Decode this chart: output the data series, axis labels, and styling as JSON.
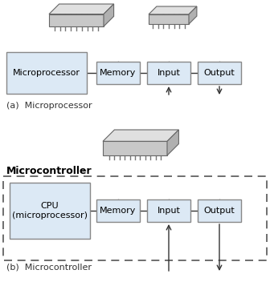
{
  "bg_color": "#ffffff",
  "box_fill": "#dce9f5",
  "box_edge": "#888888",
  "dashed_box_edge": "#555555",
  "section_a_label": "(a)  Microprocessor",
  "section_b_label": "(b)  Microcontroller",
  "microcontroller_title": "Microcontroller",
  "label_a": "Microprocessor",
  "label_b": "CPU\n(microprocessor)",
  "child_boxes": [
    "Memory",
    "Input",
    "Output"
  ],
  "fig_width": 3.36,
  "fig_height": 3.62,
  "line_color": "#333333"
}
